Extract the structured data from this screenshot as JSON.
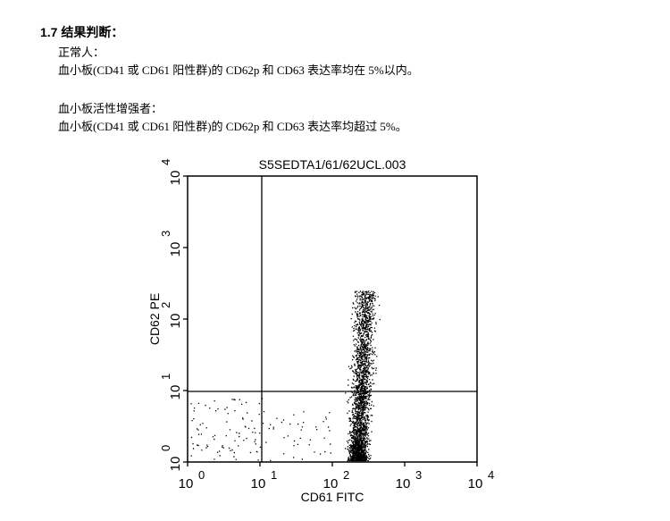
{
  "header": {
    "title": "1.7  结果判断："
  },
  "sections": [
    {
      "heading": "正常人：",
      "text": "血小板(CD41 或 CD61 阳性群)的 CD62p 和 CD63 表达率均在 5%以内。"
    },
    {
      "heading": "血小板活性增强者：",
      "text": "血小板(CD41 或 CD61 阳性群)的 CD62p 和 CD63 表达率均超过 5%。"
    }
  ],
  "figure": {
    "title": "S5SEDTA1/61/62UCL.003",
    "x_label": "CD61 FITC",
    "y_label": "CD62 PE",
    "x_ticks": [
      {
        "base": "10",
        "exponent": "0"
      },
      {
        "base": "10",
        "exponent": "1"
      },
      {
        "base": "10",
        "exponent": "2"
      },
      {
        "base": "10",
        "exponent": "3"
      },
      {
        "base": "10",
        "exponent": "4"
      }
    ],
    "y_ticks": [
      {
        "base": "10",
        "exponent": "0"
      },
      {
        "base": "10",
        "exponent": "1"
      },
      {
        "base": "10",
        "exponent": "2"
      },
      {
        "base": "10",
        "exponent": "3"
      },
      {
        "base": "10",
        "exponent": "4"
      }
    ]
  }
}
